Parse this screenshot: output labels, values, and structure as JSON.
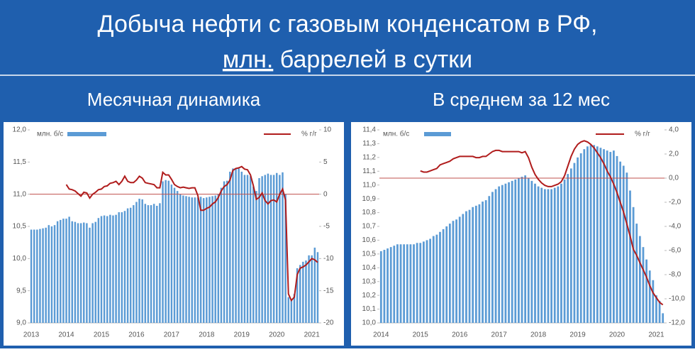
{
  "header": {
    "title": "Добыча нефти с газовым конденсатом в РФ,",
    "unit_underlined": "млн.",
    "unit_rest": "баррелей в сутки"
  },
  "chart_data": [
    {
      "type": "bar-line",
      "title": "Месячная динамика",
      "categories": [
        "2013",
        null,
        null,
        null,
        null,
        null,
        null,
        null,
        null,
        null,
        null,
        null,
        "2014",
        null,
        null,
        null,
        null,
        null,
        null,
        null,
        null,
        null,
        null,
        null,
        "2015",
        null,
        null,
        null,
        null,
        null,
        null,
        null,
        null,
        null,
        null,
        null,
        "2016",
        null,
        null,
        null,
        null,
        null,
        null,
        null,
        null,
        null,
        null,
        null,
        "2017",
        null,
        null,
        null,
        null,
        null,
        null,
        null,
        null,
        null,
        null,
        null,
        "2018",
        null,
        null,
        null,
        null,
        null,
        null,
        null,
        null,
        null,
        null,
        null,
        "2019",
        null,
        null,
        null,
        null,
        null,
        null,
        null,
        null,
        null,
        null,
        null,
        "2020",
        null,
        null,
        null,
        null,
        null,
        null,
        null,
        null,
        null,
        null,
        null,
        "2021",
        null,
        null
      ],
      "series": [
        {
          "name": "млн. б/с",
          "color": "#5b9bd5",
          "values": [
            10.45,
            10.45,
            10.45,
            10.46,
            10.47,
            10.48,
            10.52,
            10.5,
            10.52,
            10.58,
            10.6,
            10.62,
            10.62,
            10.65,
            10.58,
            10.57,
            10.55,
            10.55,
            10.56,
            10.55,
            10.48,
            10.55,
            10.57,
            10.63,
            10.66,
            10.67,
            10.66,
            10.68,
            10.67,
            10.68,
            10.72,
            10.72,
            10.74,
            10.78,
            10.79,
            10.83,
            10.88,
            10.93,
            10.92,
            10.85,
            10.83,
            10.83,
            10.85,
            10.82,
            10.86,
            11.2,
            11.22,
            11.21,
            11.15,
            11.1,
            11.05,
            11.0,
            10.98,
            10.97,
            10.96,
            10.95,
            10.95,
            10.95,
            10.96,
            10.94,
            10.95,
            10.96,
            10.97,
            10.98,
            11.0,
            11.1,
            11.2,
            11.21,
            11.35,
            11.4,
            11.4,
            11.4,
            11.35,
            11.3,
            11.3,
            11.28,
            11.12,
            11.05,
            11.25,
            11.28,
            11.3,
            11.32,
            11.3,
            11.3,
            11.33,
            11.3,
            11.34,
            11.0,
            9.4,
            9.35,
            9.45,
            9.85,
            9.9,
            9.95,
            9.97,
            10.05,
            10.05,
            10.17,
            10.1
          ]
        },
        {
          "name": "% г/г",
          "color": "#b01c1c",
          "axis": "y2",
          "values": [
            null,
            null,
            null,
            null,
            null,
            null,
            null,
            null,
            null,
            null,
            null,
            null,
            1.5,
            0.8,
            0.7,
            0.5,
            0.1,
            -0.3,
            0.3,
            0.2,
            -0.6,
            0,
            0.3,
            0.7,
            0.8,
            1.2,
            1.3,
            1.7,
            1.8,
            2.0,
            1.5,
            2.0,
            2.8,
            2.0,
            1.8,
            1.8,
            2.2,
            2.8,
            2.5,
            1.8,
            1.7,
            1.6,
            1.5,
            1.0,
            1.0,
            3.4,
            3.0,
            3.0,
            2.3,
            1.5,
            1.2,
            1.0,
            1.1,
            1.0,
            0.9,
            1.0,
            1.0,
            -0.2,
            -2.5,
            -2.5,
            -2.2,
            -2.0,
            -1.5,
            -1.2,
            -0.5,
            0.5,
            1.2,
            1.5,
            2.2,
            3.7,
            4.0,
            4.1,
            4.3,
            3.9,
            3.8,
            3.0,
            1.3,
            -0.8,
            -0.5,
            0.2,
            -1.0,
            -1.5,
            -1.0,
            -0.9,
            -1.2,
            0,
            0.8,
            -0.9,
            -15.5,
            -16.5,
            -16,
            -12.5,
            -11.5,
            -11.3,
            -11.0,
            -10.5,
            -10.0,
            -10.2,
            -10.6
          ]
        }
      ],
      "ylim": [
        9,
        12
      ],
      "yticks": [
        {
          "value": 9,
          "label": "9,0"
        },
        {
          "value": 9.5,
          "label": "9,5"
        },
        {
          "value": 10,
          "label": "10,0"
        },
        {
          "value": 10.5,
          "label": "10,5"
        },
        {
          "value": 11,
          "label": "11,0"
        },
        {
          "value": 11.5,
          "label": "11,5"
        },
        {
          "value": 12,
          "label": "12,0"
        }
      ],
      "y2lim": [
        -20,
        10
      ],
      "y2ticks": [
        -20,
        -15,
        -10,
        -5,
        0,
        5,
        10
      ]
    },
    {
      "type": "bar-line",
      "title": "В среднем за 12 мес",
      "categories": [
        "2014",
        null,
        null,
        null,
        null,
        null,
        null,
        null,
        null,
        null,
        null,
        null,
        "2015",
        null,
        null,
        null,
        null,
        null,
        null,
        null,
        null,
        null,
        null,
        null,
        "2016",
        null,
        null,
        null,
        null,
        null,
        null,
        null,
        null,
        null,
        null,
        null,
        "2017",
        null,
        null,
        null,
        null,
        null,
        null,
        null,
        null,
        null,
        null,
        null,
        "2018",
        null,
        null,
        null,
        null,
        null,
        null,
        null,
        null,
        null,
        null,
        null,
        "2019",
        null,
        null,
        null,
        null,
        null,
        null,
        null,
        null,
        null,
        null,
        null,
        "2020",
        null,
        null,
        null,
        null,
        null,
        null,
        null,
        null,
        null,
        null,
        null,
        "2021",
        null,
        null
      ],
      "series": [
        {
          "name": "млн. б/с",
          "color": "#5b9bd5",
          "values": [
            10.52,
            10.53,
            10.54,
            10.55,
            10.56,
            10.57,
            10.57,
            10.57,
            10.57,
            10.57,
            10.57,
            10.58,
            10.58,
            10.59,
            10.6,
            10.61,
            10.63,
            10.64,
            10.66,
            10.68,
            10.7,
            10.72,
            10.74,
            10.75,
            10.77,
            10.79,
            10.81,
            10.82,
            10.84,
            10.85,
            10.86,
            10.88,
            10.89,
            10.92,
            10.95,
            10.97,
            10.99,
            11.0,
            11.01,
            11.02,
            11.03,
            11.04,
            11.05,
            11.06,
            11.07,
            11.05,
            11.03,
            11.01,
            10.99,
            10.98,
            10.97,
            10.97,
            10.97,
            10.98,
            10.99,
            11.01,
            11.04,
            11.08,
            11.12,
            11.16,
            11.2,
            11.23,
            11.26,
            11.28,
            11.29,
            11.29,
            11.28,
            11.27,
            11.26,
            11.25,
            11.24,
            11.25,
            11.21,
            11.17,
            11.14,
            11.09,
            10.96,
            10.84,
            10.72,
            10.63,
            10.55,
            10.46,
            10.38,
            10.31,
            10.2,
            10.16,
            10.07
          ]
        },
        {
          "name": "% г/г",
          "color": "#b01c1c",
          "axis": "y2",
          "values": [
            null,
            null,
            null,
            null,
            null,
            null,
            null,
            null,
            null,
            null,
            null,
            null,
            0.6,
            0.5,
            0.5,
            0.6,
            0.7,
            0.8,
            1.1,
            1.2,
            1.3,
            1.4,
            1.6,
            1.7,
            1.8,
            1.8,
            1.8,
            1.8,
            1.8,
            1.7,
            1.7,
            1.8,
            1.8,
            2.0,
            2.2,
            2.3,
            2.3,
            2.2,
            2.2,
            2.2,
            2.2,
            2.2,
            2.2,
            2.1,
            2.2,
            1.7,
            0.9,
            0.3,
            -0.1,
            -0.4,
            -0.6,
            -0.7,
            -0.7,
            -0.6,
            -0.5,
            -0.3,
            0.2,
            1.0,
            1.8,
            2.4,
            2.8,
            3.0,
            3.1,
            3.0,
            2.8,
            2.5,
            2.1,
            1.7,
            1.2,
            0.6,
            0.1,
            -0.5,
            -1.2,
            -2.0,
            -2.8,
            -3.8,
            -4.8,
            -5.9,
            -6.4,
            -7.0,
            -7.6,
            -8.2,
            -8.9,
            -9.5,
            -9.9,
            -10.3,
            -10.5
          ]
        }
      ],
      "ylim": [
        10,
        11.4
      ],
      "yticks": [
        {
          "value": 10,
          "label": "10,0"
        },
        {
          "value": 10.1,
          "label": "10,1"
        },
        {
          "value": 10.2,
          "label": "10,2"
        },
        {
          "value": 10.3,
          "label": "10,3"
        },
        {
          "value": 10.4,
          "label": "10,4"
        },
        {
          "value": 10.5,
          "label": "10,5"
        },
        {
          "value": 10.6,
          "label": "10,6"
        },
        {
          "value": 10.7,
          "label": "10,7"
        },
        {
          "value": 10.8,
          "label": "10,8"
        },
        {
          "value": 10.9,
          "label": "10,9"
        },
        {
          "value": 11,
          "label": "11,0"
        },
        {
          "value": 11.1,
          "label": "11,1"
        },
        {
          "value": 11.2,
          "label": "11,2"
        },
        {
          "value": 11.3,
          "label": "11,3"
        },
        {
          "value": 11.4,
          "label": "11,4"
        }
      ],
      "y2lim": [
        -12,
        4
      ],
      "y2ticks": [
        {
          "value": -12,
          "label": "-12,0"
        },
        {
          "value": -10,
          "label": "-10,0"
        },
        {
          "value": -8,
          "label": "-8,0"
        },
        {
          "value": -6,
          "label": "-6,0"
        },
        {
          "value": -4,
          "label": "-4,0"
        },
        {
          "value": -2,
          "label": "-2,0"
        },
        {
          "value": 0,
          "label": "0,0"
        },
        {
          "value": 2,
          "label": "2,0"
        },
        {
          "value": 4,
          "label": "4,0"
        }
      ]
    }
  ]
}
